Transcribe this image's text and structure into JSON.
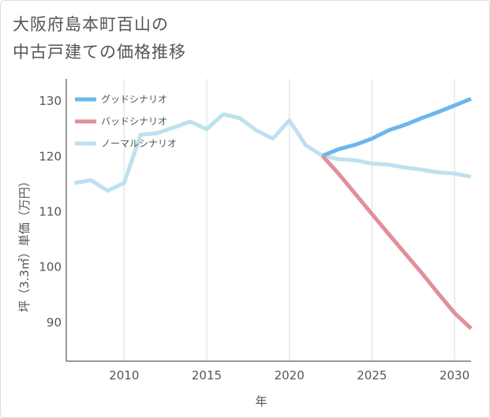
{
  "chart_data": {
    "type": "line",
    "title_lines": [
      "大阪府島本町百山の",
      "中古戸建ての価格推移"
    ],
    "xlabel": "年",
    "ylabel": "坪（3.3㎡）単価（万円）",
    "xlim": [
      2006.5,
      2031
    ],
    "ylim": [
      83,
      134
    ],
    "xticks": [
      2010,
      2015,
      2020,
      2025,
      2030
    ],
    "yticks": [
      90,
      100,
      110,
      120,
      130
    ],
    "grid": "vertical",
    "legend_position": "top-left",
    "series": [
      {
        "name": "グッドシナリオ",
        "color": "#6bb6ec",
        "points": [
          [
            2022,
            120.1
          ],
          [
            2023,
            121.3
          ],
          [
            2024,
            122.1
          ],
          [
            2025,
            123.2
          ],
          [
            2026,
            124.7
          ],
          [
            2027,
            125.7
          ],
          [
            2028,
            126.9
          ],
          [
            2029,
            128.0
          ],
          [
            2030,
            129.2
          ],
          [
            2031,
            130.4
          ]
        ]
      },
      {
        "name": "バッドシナリオ",
        "color": "#e0909a",
        "points": [
          [
            2022,
            120.1
          ],
          [
            2023,
            116.8
          ],
          [
            2024,
            113.2
          ],
          [
            2025,
            109.6
          ],
          [
            2026,
            106.0
          ],
          [
            2027,
            102.5
          ],
          [
            2028,
            99.0
          ],
          [
            2029,
            95.3
          ],
          [
            2030,
            91.7
          ],
          [
            2031,
            88.9
          ]
        ]
      },
      {
        "name": "ノーマルシナリオ",
        "color": "#bfe0ef",
        "points": [
          [
            2007,
            115.2
          ],
          [
            2008,
            115.7
          ],
          [
            2009,
            113.8
          ],
          [
            2010,
            115.2
          ],
          [
            2011,
            123.9
          ],
          [
            2012,
            124.2
          ],
          [
            2013,
            125.2
          ],
          [
            2014,
            126.3
          ],
          [
            2015,
            124.9
          ],
          [
            2016,
            127.6
          ],
          [
            2017,
            126.9
          ],
          [
            2018,
            124.7
          ],
          [
            2019,
            123.2
          ],
          [
            2020,
            126.5
          ],
          [
            2021,
            122.0
          ],
          [
            2022,
            120.1
          ],
          [
            2023,
            119.5
          ],
          [
            2024,
            119.3
          ],
          [
            2025,
            118.7
          ],
          [
            2026,
            118.5
          ],
          [
            2027,
            118.0
          ],
          [
            2028,
            117.6
          ],
          [
            2029,
            117.1
          ],
          [
            2030,
            116.9
          ],
          [
            2031,
            116.3
          ]
        ]
      }
    ]
  }
}
